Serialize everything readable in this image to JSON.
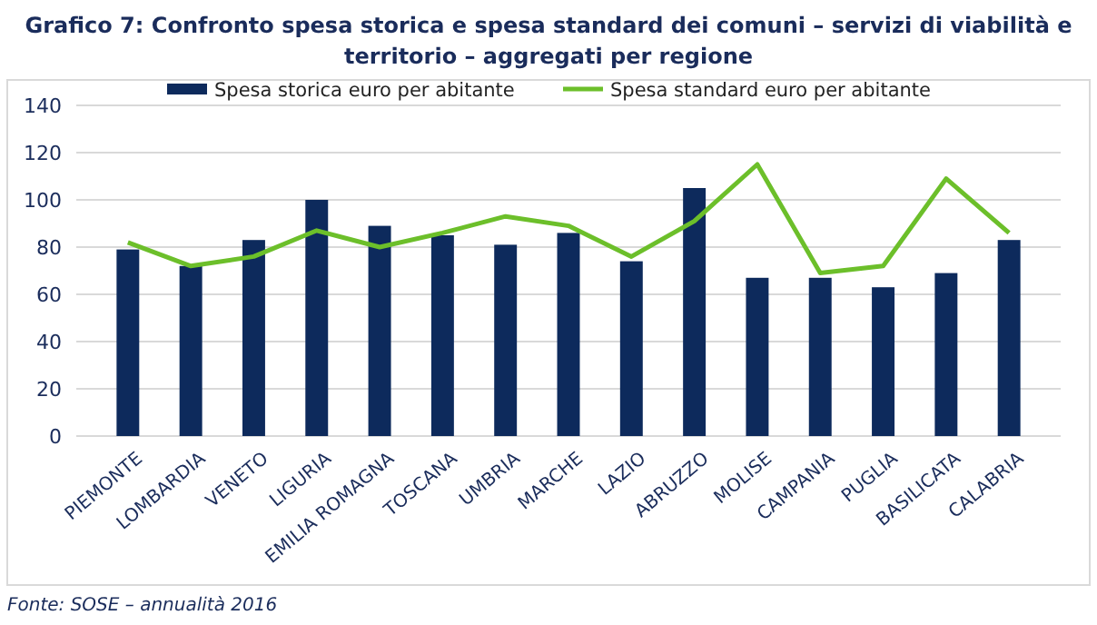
{
  "chart_data": {
    "type": "bar",
    "title": "Grafico 7: Confronto spesa storica e spesa standard dei comuni – servizi di viabilità e territorio – aggregati per regione",
    "categories": [
      "PIEMONTE",
      "LOMBARDIA",
      "VENETO",
      "LIGURIA",
      "EMILIA ROMAGNA",
      "TOSCANA",
      "UMBRIA",
      "MARCHE",
      "LAZIO",
      "ABRUZZO",
      "MOLISE",
      "CAMPANIA",
      "PUGLIA",
      "BASILICATA",
      "CALABRIA"
    ],
    "series": [
      {
        "name": "Spesa storica euro per abitante",
        "color": "#0d2a5c",
        "values": [
          79,
          72,
          83,
          100,
          89,
          85,
          81,
          86,
          74,
          105,
          67,
          67,
          63,
          69,
          83
        ]
      },
      {
        "name": "Spesa standard euro per abitante",
        "type": "line",
        "color": "#6cbf2a",
        "values": [
          82,
          72,
          76,
          87,
          80,
          86,
          93,
          89,
          76,
          91,
          115,
          69,
          72,
          109,
          86
        ]
      }
    ],
    "ylim": [
      0,
      140
    ],
    "yticks": [
      0,
      20,
      40,
      60,
      80,
      100,
      120,
      140
    ],
    "grid": "y",
    "legend": "top",
    "marker": "none",
    "annotations": [
      "Fonte: SOSE – annualità 2016"
    ]
  }
}
